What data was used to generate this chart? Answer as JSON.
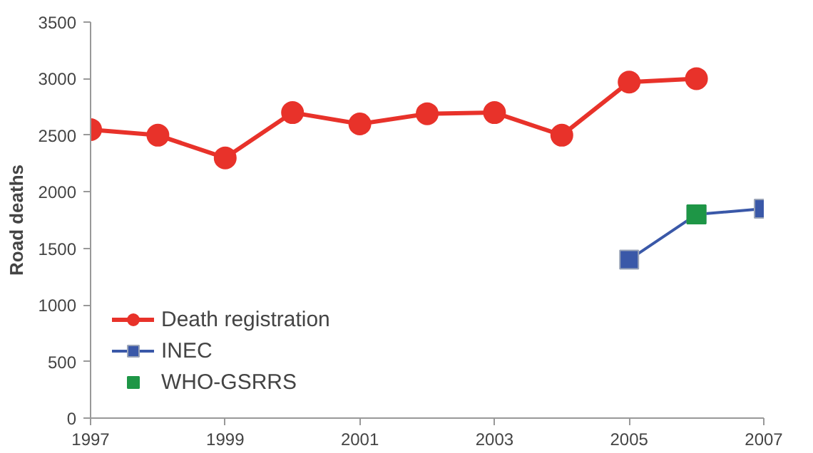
{
  "chart_data": {
    "type": "line",
    "ylabel": "Road deaths",
    "x": [
      1997,
      1998,
      1999,
      2000,
      2001,
      2002,
      2003,
      2004,
      2005,
      2006
    ],
    "series": [
      {
        "name": "Death registration",
        "color": "#e8322a",
        "marker": "circle",
        "values": [
          2550,
          2500,
          2300,
          2700,
          2600,
          2690,
          2700,
          2500,
          2970,
          3000
        ]
      },
      {
        "name": "WHO-GSRRS",
        "type": "scatter",
        "color": "#1e9646",
        "marker": "square",
        "x": [
          2006
        ],
        "values": [
          1800
        ]
      },
      {
        "name": "INEC",
        "color": "#3a58a8",
        "marker": "square",
        "x": [
          2005,
          2006,
          2007
        ],
        "values": [
          1400,
          1800,
          1850
        ]
      }
    ],
    "xlim": [
      1997,
      2007
    ],
    "xticks": [
      1997,
      1999,
      2001,
      2003,
      2005,
      2007
    ],
    "ylim": [
      0,
      3500
    ],
    "yticks": [
      0,
      500,
      1000,
      1500,
      2000,
      2500,
      3000,
      3500
    ],
    "grid": false,
    "legend": "bottom left"
  }
}
